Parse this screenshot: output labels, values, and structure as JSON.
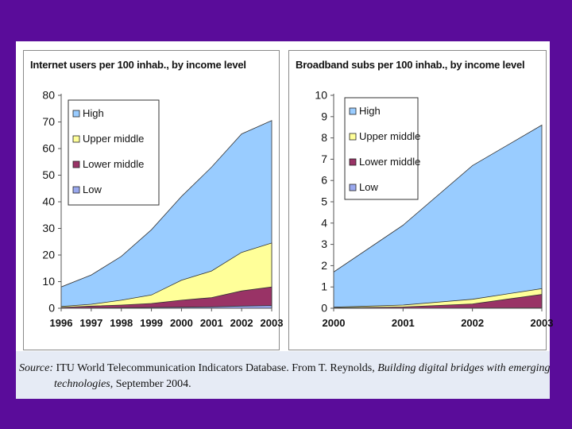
{
  "chart_data": [
    {
      "type": "area",
      "stacked": true,
      "title": "Internet users per 100 inhab., by income level",
      "categories": [
        "1996",
        "1997",
        "1998",
        "1999",
        "2000",
        "2001",
        "2002",
        "2003"
      ],
      "ylim": [
        0,
        80
      ],
      "yticks": [
        0,
        10,
        20,
        30,
        40,
        50,
        60,
        70,
        80
      ],
      "series": [
        {
          "name": "High",
          "color": "#99ccff",
          "totals": [
            8,
            12.5,
            19.5,
            29.5,
            42,
            53,
            65.5,
            70.5
          ]
        },
        {
          "name": "Upper middle",
          "color": "#ffff99",
          "totals": [
            0.7,
            1.5,
            3,
            5,
            10.5,
            14,
            21,
            24.5
          ]
        },
        {
          "name": "Lower middle",
          "color": "#993366",
          "totals": [
            0.3,
            0.8,
            1.2,
            1.8,
            3,
            4,
            6.5,
            8
          ]
        },
        {
          "name": "Low",
          "color": "#99a8ee",
          "totals": [
            0,
            0.1,
            0.2,
            0.3,
            0.4,
            0.5,
            0.8,
            1
          ]
        }
      ],
      "legend": "top-left"
    },
    {
      "type": "area",
      "stacked": true,
      "title": "Broadband subs per 100 inhab., by income level",
      "categories": [
        "2000",
        "2001",
        "2002",
        "2003"
      ],
      "ylim": [
        0,
        10
      ],
      "yticks": [
        0,
        1,
        2,
        3,
        4,
        5,
        6,
        7,
        8,
        9,
        10
      ],
      "series": [
        {
          "name": "High",
          "color": "#99ccff",
          "totals": [
            1.7,
            3.9,
            6.7,
            8.6
          ]
        },
        {
          "name": "Upper middle",
          "color": "#ffff99",
          "totals": [
            0.05,
            0.15,
            0.42,
            0.92
          ]
        },
        {
          "name": "Lower middle",
          "color": "#993366",
          "totals": [
            0.02,
            0.06,
            0.2,
            0.65
          ]
        },
        {
          "name": "Low",
          "color": "#99a8ee",
          "totals": [
            0,
            0,
            0.01,
            0.02
          ]
        }
      ],
      "legend": "top-left"
    }
  ],
  "source": {
    "label": "Source:",
    "text1": " ITU World Telecommunication Indicators Database. From T. Reynolds, ",
    "italic1": "Building digital bridges with emerging",
    "italic2": "technologies",
    "text2": ", September 2004."
  }
}
